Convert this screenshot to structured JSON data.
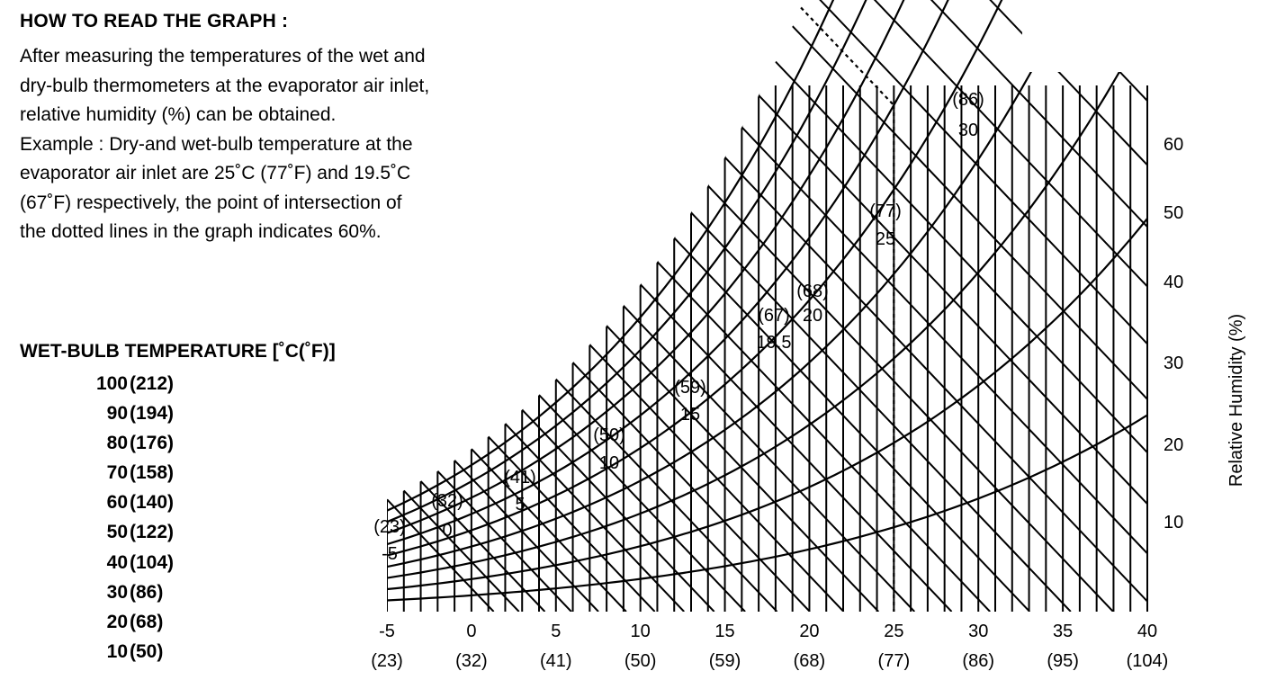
{
  "instructions": {
    "title": "HOW TO READ THE GRAPH :",
    "lines": [
      "After measuring the temperatures of the wet and",
      "dry-bulb thermometers at the evaporator air inlet,",
      "relative humidity (%) can be obtained.",
      "Example : Dry-and wet-bulb temperature at the",
      "evaporator air inlet are 25˚C (77˚F) and 19.5˚C",
      "(67˚F) respectively, the point of intersection of",
      "the dotted lines in the graph indicates 60%."
    ]
  },
  "wet_bulb_legend": {
    "title": "WET-BULB TEMPERATURE [˚C(˚F)]",
    "rows": [
      {
        "c": "100",
        "f": "(212)"
      },
      {
        "c": "90",
        "f": "(194)"
      },
      {
        "c": "80",
        "f": "(176)"
      },
      {
        "c": "70",
        "f": "(158)"
      },
      {
        "c": "60",
        "f": "(140)"
      },
      {
        "c": "50",
        "f": "(122)"
      },
      {
        "c": "40",
        "f": "(104)"
      },
      {
        "c": "30",
        "f": "(86)"
      },
      {
        "c": "20",
        "f": "(68)"
      },
      {
        "c": "10",
        "f": "(50)"
      }
    ]
  },
  "chart_data": {
    "type": "line",
    "x_ticks": [
      {
        "c": "-5",
        "f": "(23)"
      },
      {
        "c": "0",
        "f": "(32)"
      },
      {
        "c": "5",
        "f": "(41)"
      },
      {
        "c": "10",
        "f": "(50)"
      },
      {
        "c": "15",
        "f": "(59)"
      },
      {
        "c": "20",
        "f": "(68)"
      },
      {
        "c": "25",
        "f": "(77)"
      },
      {
        "c": "30",
        "f": "(86)"
      },
      {
        "c": "35",
        "f": "(95)"
      },
      {
        "c": "40",
        "f": "(104)"
      }
    ],
    "xlim": [
      -5,
      40
    ],
    "y_ticks": [
      "10",
      "20",
      "30",
      "40",
      "50",
      "60"
    ],
    "ylabel": "Relative Humidity (%)",
    "saturation_labels": [
      {
        "t": -5,
        "c": "-5",
        "f": "(23)"
      },
      {
        "t": 0,
        "c": "0",
        "f": "(32)"
      },
      {
        "t": 5,
        "c": "5",
        "f": "(41)"
      },
      {
        "t": 10,
        "c": "10",
        "f": "(50)"
      },
      {
        "t": 15,
        "c": "15",
        "f": "(59)"
      },
      {
        "t": 19.5,
        "c": "19.5",
        "f": "(67)"
      },
      {
        "t": 20,
        "c": "20",
        "f": "(68)"
      },
      {
        "t": 25,
        "c": "25",
        "f": "(77)"
      },
      {
        "t": 30,
        "c": "30",
        "f": "(86)"
      }
    ],
    "example": {
      "dry_bulb_c": 25,
      "wet_bulb_c": 19.5,
      "rh_percent": 60
    }
  }
}
